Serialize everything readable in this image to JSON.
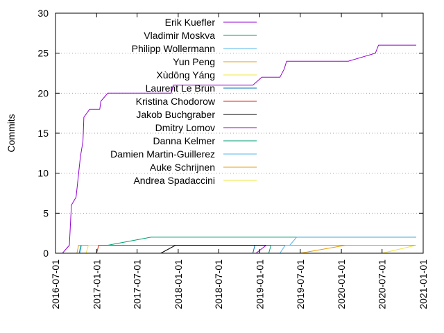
{
  "chart_data": {
    "type": "line",
    "xlabel": "",
    "ylabel": "Commits",
    "xlim": [
      "2016-07-01",
      "2021-01-01"
    ],
    "ylim": [
      0,
      30
    ],
    "yticks": [
      0,
      5,
      10,
      15,
      20,
      25,
      30
    ],
    "xticks": [
      "2016-07-01",
      "2017-01-01",
      "2017-07-01",
      "2018-01-01",
      "2018-07-01",
      "2019-01-01",
      "2019-07-01",
      "2020-01-01",
      "2020-07-01",
      "2021-01-01"
    ],
    "grid": "horizontal dotted",
    "legend_position": "top-left",
    "series": [
      {
        "name": "Erik Kuefler",
        "color": "#9400d3",
        "points": [
          [
            "2016-08-01",
            0
          ],
          [
            "2016-09-01",
            1
          ],
          [
            "2016-09-10",
            6
          ],
          [
            "2016-10-01",
            7
          ],
          [
            "2016-10-05",
            8
          ],
          [
            "2016-10-20",
            12
          ],
          [
            "2016-11-01",
            14
          ],
          [
            "2016-11-05",
            17
          ],
          [
            "2016-12-01",
            18
          ],
          [
            "2017-01-15",
            18
          ],
          [
            "2017-01-20",
            19
          ],
          [
            "2017-02-20",
            20
          ],
          [
            "2017-12-01",
            20
          ],
          [
            "2017-12-10",
            21
          ],
          [
            "2018-12-01",
            21
          ],
          [
            "2019-01-10",
            22
          ],
          [
            "2019-02-15",
            22
          ],
          [
            "2019-04-01",
            22
          ],
          [
            "2019-04-20",
            23
          ],
          [
            "2019-05-01",
            24
          ],
          [
            "2020-02-01",
            24
          ],
          [
            "2020-06-01",
            25
          ],
          [
            "2020-06-15",
            26
          ],
          [
            "2020-12-01",
            26
          ]
        ]
      },
      {
        "name": "Vladimir Moskva",
        "color": "#009e73",
        "points": [
          [
            "2016-10-15",
            0
          ],
          [
            "2016-10-22",
            1
          ],
          [
            "2017-02-20",
            1
          ],
          [
            "2017-09-01",
            2
          ],
          [
            "2020-12-01",
            2
          ]
        ]
      },
      {
        "name": "Philipp Wollermann",
        "color": "#56b4e9",
        "points": [
          [
            "2016-10-18",
            0
          ],
          [
            "2016-10-25",
            1
          ],
          [
            "2019-05-15",
            1
          ],
          [
            "2019-06-15",
            2
          ],
          [
            "2020-12-01",
            2
          ]
        ]
      },
      {
        "name": "Yun Peng",
        "color": "#e69f00",
        "points": [
          [
            "2016-10-05",
            0
          ],
          [
            "2016-10-12",
            1
          ],
          [
            "2020-12-01",
            1
          ]
        ]
      },
      {
        "name": "Xùdōng Yáng",
        "color": "#f0e442",
        "points": [
          [
            "2016-11-15",
            0
          ],
          [
            "2016-11-25",
            1
          ],
          [
            "2020-12-01",
            1
          ]
        ]
      },
      {
        "name": "Laurent Le Brun",
        "color": "#0072b2",
        "points": [
          [
            "2018-12-01",
            0
          ],
          [
            "2018-12-10",
            1
          ],
          [
            "2020-12-01",
            1
          ]
        ]
      },
      {
        "name": "Kristina Chodorow",
        "color": "#e51e10",
        "points": [
          [
            "2017-01-01",
            0
          ],
          [
            "2017-01-10",
            1
          ],
          [
            "2020-12-01",
            1
          ]
        ]
      },
      {
        "name": "Jakob Buchgraber",
        "color": "#000000",
        "points": [
          [
            "2017-10-15",
            0
          ],
          [
            "2017-12-20",
            1
          ],
          [
            "2020-12-01",
            1
          ]
        ]
      },
      {
        "name": "Dmitry Lomov",
        "color": "#9400d3",
        "points": [
          [
            "2018-12-15",
            0
          ],
          [
            "2019-01-30",
            1
          ],
          [
            "2020-12-01",
            1
          ]
        ]
      },
      {
        "name": "Danna Kelmer",
        "color": "#009e73",
        "points": [
          [
            "2019-02-10",
            0
          ],
          [
            "2019-02-20",
            1
          ],
          [
            "2020-12-01",
            1
          ]
        ]
      },
      {
        "name": "Damien Martin-Guillerez",
        "color": "#56b4e9",
        "points": [
          [
            "2019-04-01",
            0
          ],
          [
            "2019-04-25",
            1
          ],
          [
            "2020-12-01",
            1
          ]
        ]
      },
      {
        "name": "Auke Schrijnen",
        "color": "#e69f00",
        "points": [
          [
            "2019-07-01",
            0
          ],
          [
            "2020-01-20",
            1
          ],
          [
            "2020-12-01",
            1
          ]
        ]
      },
      {
        "name": "Andrea Spadaccini",
        "color": "#f0e442",
        "points": [
          [
            "2020-07-01",
            0
          ],
          [
            "2020-12-01",
            1
          ]
        ]
      }
    ]
  }
}
